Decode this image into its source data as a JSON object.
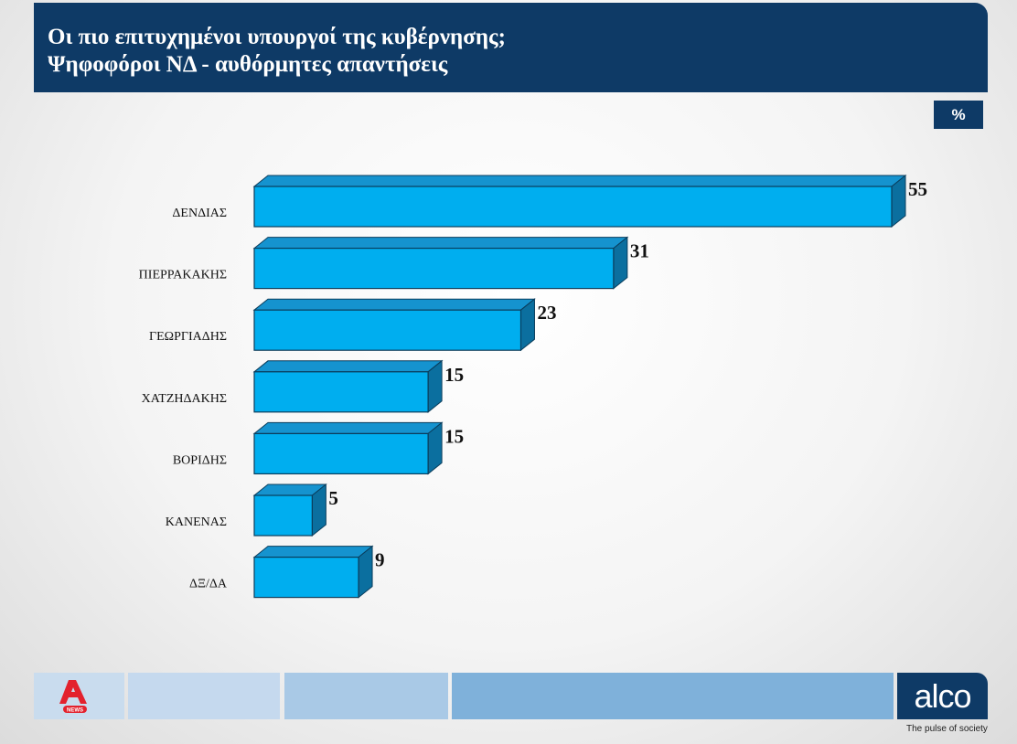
{
  "header": {
    "title_line1": "Οι πιο επιτυχημένοι υπουργοί της κυβέρνησης;",
    "title_line2": "Ψηφοφόροι ΝΔ - αυθόρμητες απαντήσεις",
    "unit_badge": "%"
  },
  "chart_data": {
    "type": "bar",
    "orientation": "horizontal",
    "style": "3d",
    "categories": [
      "ΔΕΝΔΙΑΣ",
      "ΠΙΕΡΡΑΚΑΚΗΣ",
      "ΓΕΩΡΓΙΑΔΗΣ",
      "ΧΑΤΖΗΔΑΚΗΣ",
      "ΒΟΡΙΔΗΣ",
      "ΚΑΝΕΝΑΣ",
      "ΔΞ/ΔΑ"
    ],
    "values": [
      55,
      31,
      23,
      15,
      15,
      5,
      9
    ],
    "xlim": [
      0,
      55
    ],
    "grid": false,
    "bar_color": "#00aeef"
  },
  "footer": {
    "brand_logo": "alco",
    "tagline": "The pulse of society",
    "logo_icon": "alpha-news-icon",
    "strip_colors": [
      "#c5d9ee",
      "#a9c9e6",
      "#7fb1da"
    ]
  }
}
